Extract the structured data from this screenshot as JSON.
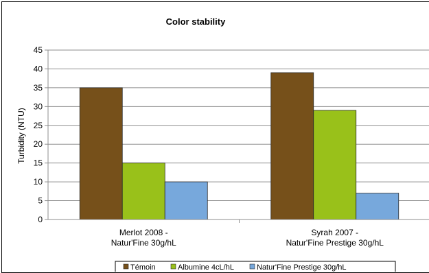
{
  "chart_data": {
    "type": "bar",
    "title": "Color stability",
    "ylabel": "Turbidity (NTU)",
    "xlabel": "",
    "ylim": [
      0,
      45
    ],
    "yticks": [
      0,
      5,
      10,
      15,
      20,
      25,
      30,
      35,
      40,
      45
    ],
    "grid": true,
    "legend_position": "bottom",
    "categories": [
      [
        "Merlot 2008 -",
        "Natur'Fine 30g/hL"
      ],
      [
        "Syrah 2007 -",
        "Natur'Fine Prestige 30g/hL"
      ]
    ],
    "series": [
      {
        "name": "Témoin",
        "color": "#76501a",
        "values": [
          35,
          39
        ]
      },
      {
        "name": "Albumine 4cL/hL",
        "color": "#99c11a",
        "values": [
          15,
          29
        ]
      },
      {
        "name": "Natur'Fine Prestige 30g/hL",
        "color": "#77a8dc",
        "values": [
          10,
          7
        ]
      }
    ]
  }
}
